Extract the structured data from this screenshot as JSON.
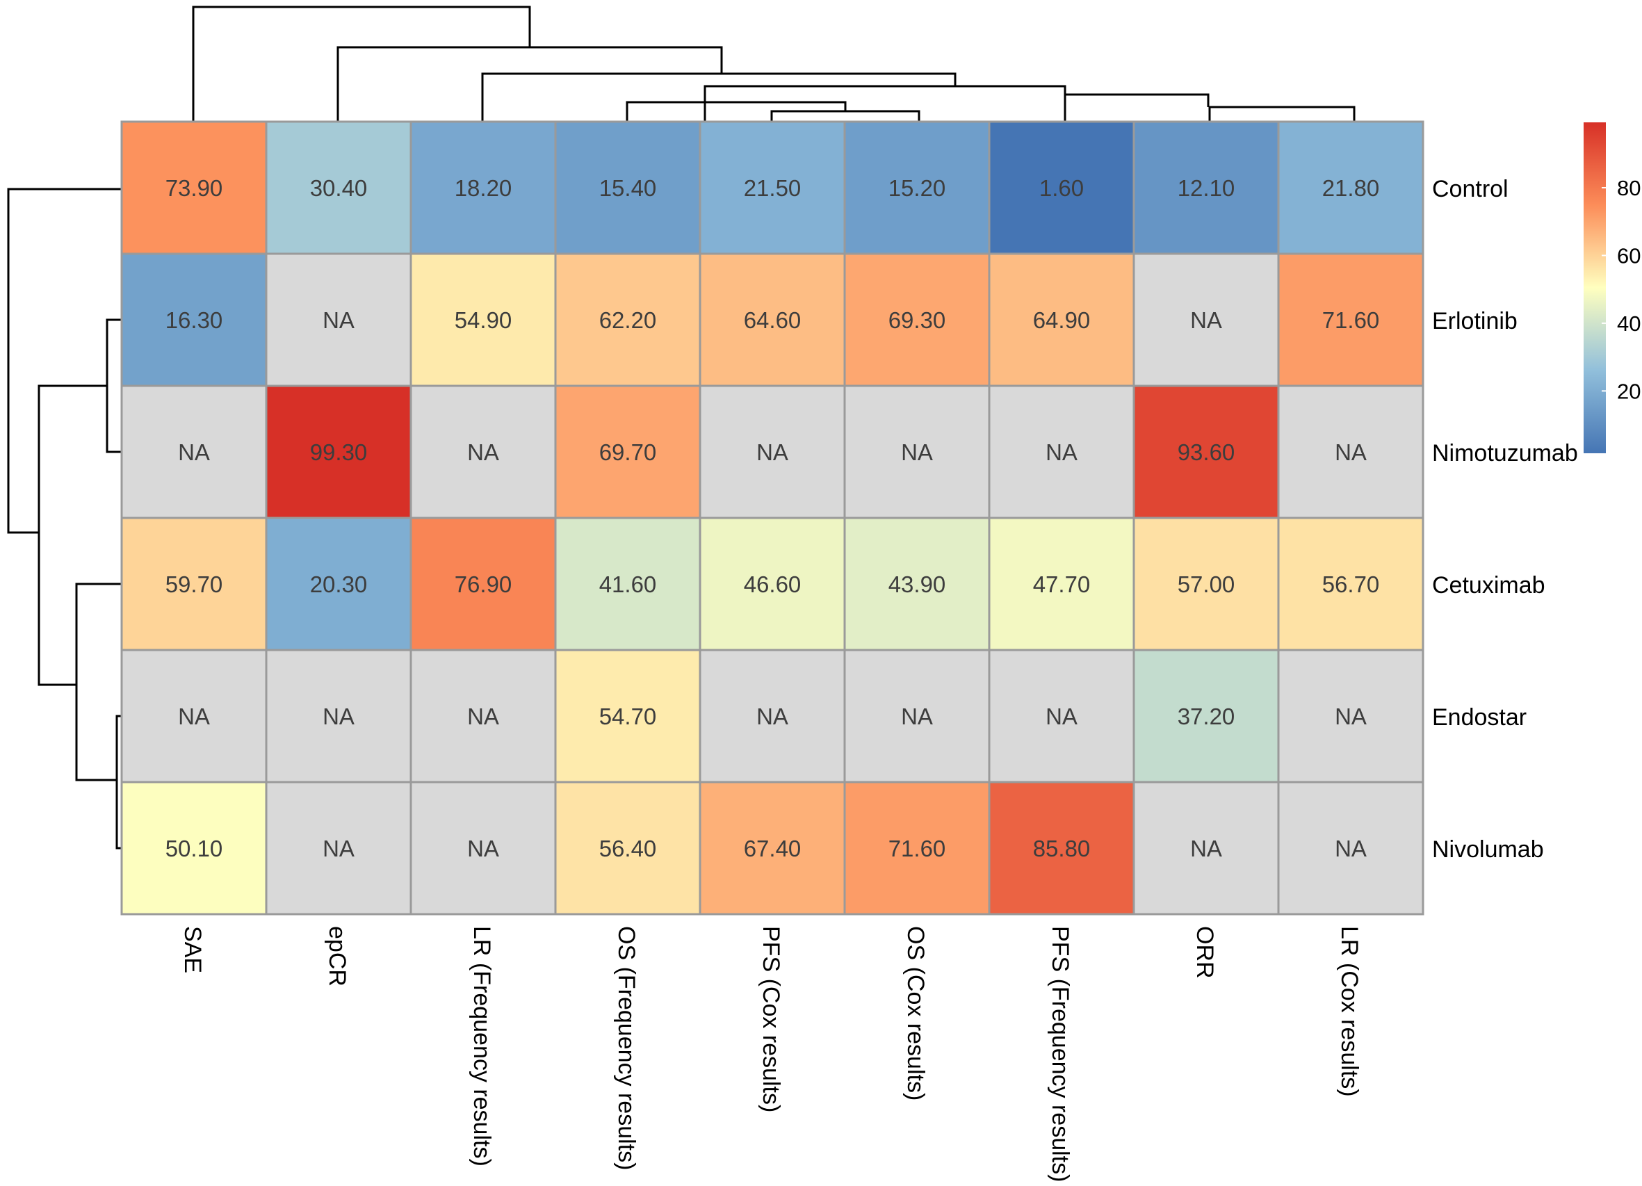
{
  "chart_data": {
    "type": "heatmap",
    "title": "",
    "rows": [
      "Control",
      "Erlotinib",
      "Nimotuzumab",
      "Cetuximab",
      "Endostar",
      "Nivolumab"
    ],
    "columns": [
      "SAE",
      "epCR",
      "LR (Frequency results)",
      "OS (Frequency results)",
      "PFS (Cox results)",
      "OS (Cox results)",
      "PFS (Frequency results)",
      "ORR",
      "LR (Cox results)"
    ],
    "values": [
      [
        73.9,
        30.4,
        18.2,
        15.4,
        21.5,
        15.2,
        1.6,
        12.1,
        21.8
      ],
      [
        16.3,
        null,
        54.9,
        62.2,
        64.6,
        69.3,
        64.9,
        null,
        71.6
      ],
      [
        null,
        99.3,
        null,
        69.7,
        null,
        null,
        null,
        93.6,
        null
      ],
      [
        59.7,
        20.3,
        76.9,
        41.6,
        46.6,
        43.9,
        47.7,
        57.0,
        56.7
      ],
      [
        null,
        null,
        null,
        54.7,
        null,
        null,
        null,
        37.2,
        null
      ],
      [
        50.1,
        null,
        null,
        56.4,
        67.4,
        71.6,
        85.8,
        null,
        null
      ]
    ],
    "cell_labels": [
      [
        "73.90",
        "30.40",
        "18.20",
        "15.40",
        "21.50",
        "15.20",
        "1.60",
        "12.10",
        "21.80"
      ],
      [
        "16.30",
        "NA",
        "54.90",
        "62.20",
        "64.60",
        "69.30",
        "64.90",
        "NA",
        "71.60"
      ],
      [
        "NA",
        "99.30",
        "NA",
        "69.70",
        "NA",
        "NA",
        "NA",
        "93.60",
        "NA"
      ],
      [
        "59.70",
        "20.30",
        "76.90",
        "41.60",
        "46.60",
        "43.90",
        "47.70",
        "57.00",
        "56.70"
      ],
      [
        "NA",
        "NA",
        "NA",
        "54.70",
        "NA",
        "NA",
        "NA",
        "37.20",
        "NA"
      ],
      [
        "50.10",
        "NA",
        "NA",
        "56.40",
        "67.40",
        "71.60",
        "85.80",
        "NA",
        "NA"
      ]
    ],
    "missing_label": "NA",
    "value_range": [
      1.6,
      99.3
    ],
    "legend": {
      "position": "right",
      "ticks": [
        20,
        40,
        60,
        80
      ],
      "tick_labels": [
        "20",
        "40",
        "60",
        "80"
      ]
    },
    "dendrogram_rows": true,
    "dendrogram_columns": true
  },
  "colors": {
    "low": "#4575b4",
    "mid_low": "#91bfdb",
    "mid": "#ffffbf",
    "mid_high": "#fc8d59",
    "high": "#d73027",
    "na_fill": "#d9d9d9",
    "cell_border": "#9a9a9a"
  }
}
